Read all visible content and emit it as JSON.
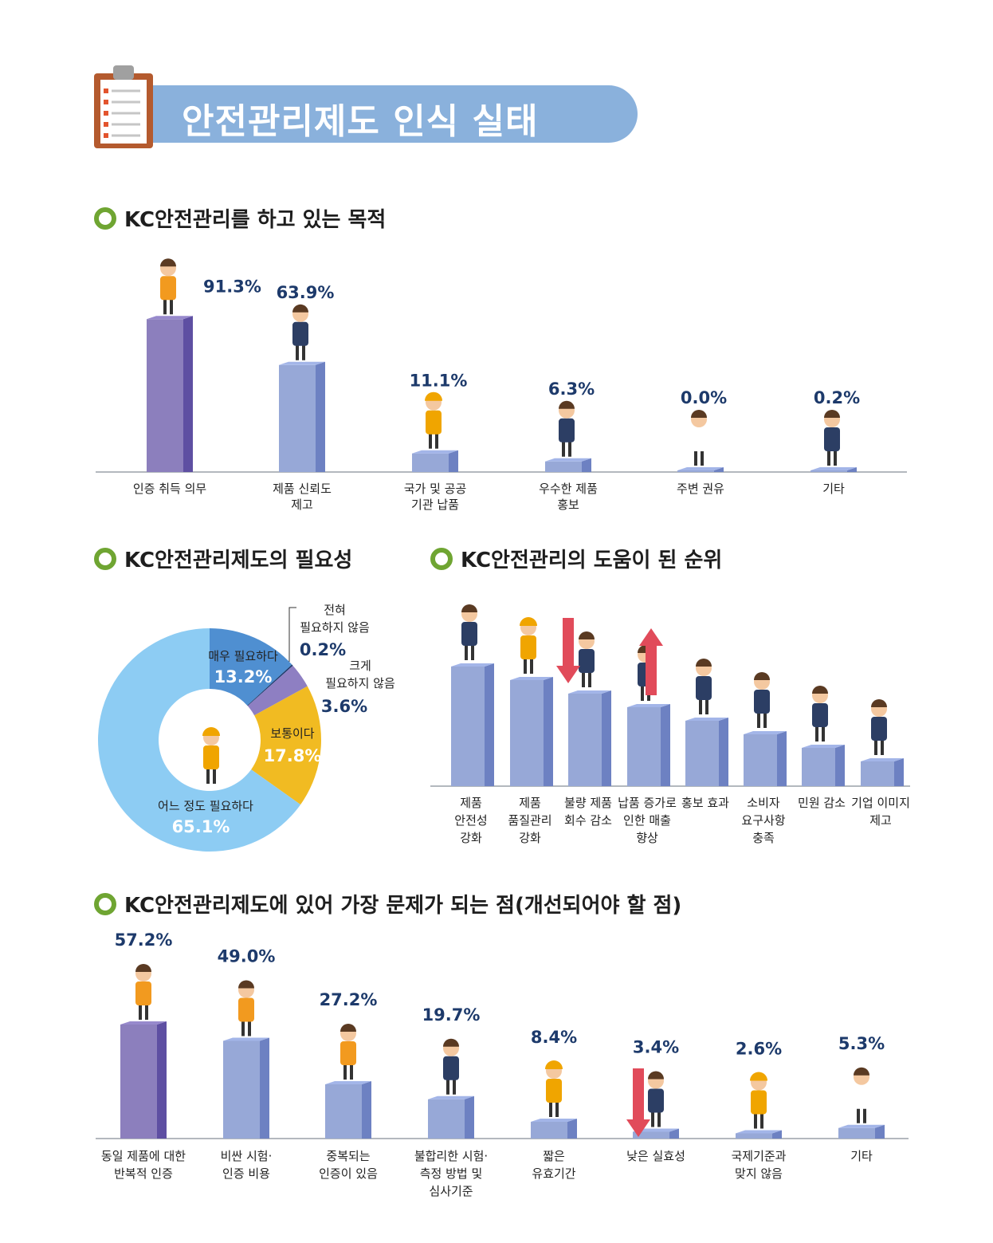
{
  "header": {
    "title": "안전관리제도 인식 실태",
    "icon": "clipboard-icon"
  },
  "colors": {
    "purple": "#8c7fbd",
    "purple_dark": "#5e4fa2",
    "blue": "#97a8d7",
    "blue_dark": "#6d81c2",
    "pie_light": "#8dccf3",
    "pie_medium": "#4f8fd1",
    "pie_purple": "#8e7fc2",
    "pie_yellow": "#f1bb22",
    "value_text": "#1d3a6b",
    "bullet_green": "#6fa532"
  },
  "chart_data": [
    {
      "id": "purpose",
      "type": "bar",
      "title": "KC안전관리를 하고 있는 목적",
      "categories": [
        "인증 취득 의무",
        "제품 신뢰도\n제고",
        "국가 및 공공\n기관 납품",
        "우수한 제품\n홍보",
        "주변 권유",
        "기타"
      ],
      "values": [
        91.3,
        63.9,
        11.1,
        6.3,
        0.0,
        0.2
      ],
      "value_labels": [
        "91.3%",
        "63.9%",
        "11.1%",
        "6.3%",
        "0.0%",
        "0.2%"
      ]
    },
    {
      "id": "necessity",
      "type": "pie",
      "title": "KC안전관리제도의 필요성",
      "slices": [
        {
          "label": "매우 필요하다",
          "value": 13.2,
          "value_label": "13.2%",
          "color": "#4f8fd1"
        },
        {
          "label": "전혀\n필요하지 않음",
          "value": 0.2,
          "value_label": "0.2%",
          "color": "#1d3a6b"
        },
        {
          "label": "크게\n필요하지 않음",
          "value": 3.6,
          "value_label": "3.6%",
          "color": "#8e7fc2"
        },
        {
          "label": "보통이다",
          "value": 17.8,
          "value_label": "17.8%",
          "color": "#f1bb22"
        },
        {
          "label": "어느 정도 필요하다",
          "value": 65.1,
          "value_label": "65.1%",
          "color": "#8dccf3"
        }
      ]
    },
    {
      "id": "ranking",
      "type": "bar",
      "title": "KC안전관리의 도움이 된 순위",
      "categories": [
        "제품\n안전성\n강화",
        "제품\n품질관리\n강화",
        "불량 제품\n회수 감소",
        "납품 증가로\n인한 매출\n향상",
        "홍보 효과",
        "소비자\n요구사항\n충족",
        "민원 감소",
        "기업 이미지\n제고"
      ],
      "ranks": [
        1,
        2,
        3,
        4,
        5,
        6,
        7,
        8
      ]
    },
    {
      "id": "problems",
      "type": "bar",
      "title": "KC안전관리제도에 있어 가장 문제가 되는 점(개선되어야 할 점)",
      "categories": [
        "동일 제품에 대한\n반복적 인증",
        "비싼 시험·\n인증 비용",
        "중복되는\n인증이 있음",
        "불합리한 시험·\n측정 방법 및\n심사기준",
        "짧은\n유효기간",
        "낮은 실효성",
        "국제기준과\n맞지 않음",
        "기타"
      ],
      "values": [
        57.2,
        49.0,
        27.2,
        19.7,
        8.4,
        3.4,
        2.6,
        5.3
      ],
      "value_labels": [
        "57.2%",
        "49.0%",
        "27.2%",
        "19.7%",
        "8.4%",
        "3.4%",
        "2.6%",
        "5.3%"
      ]
    }
  ]
}
